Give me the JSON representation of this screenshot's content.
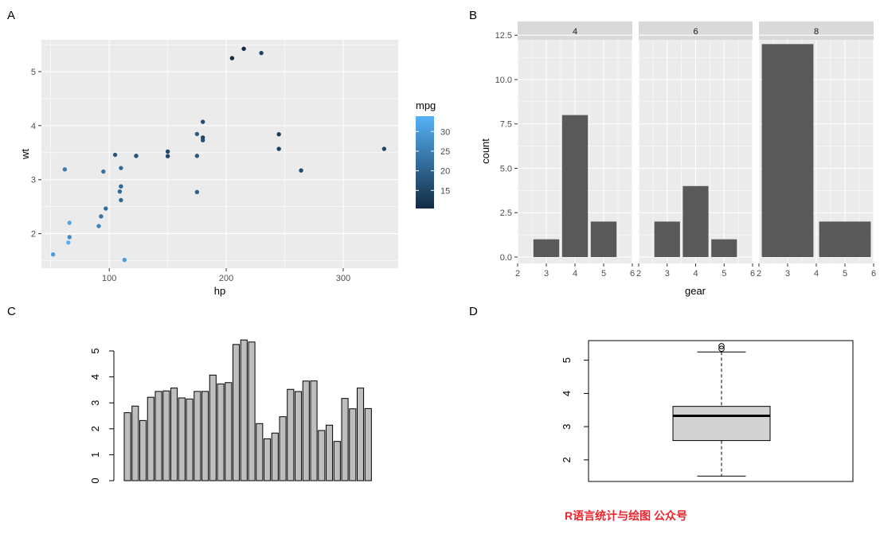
{
  "panels": {
    "a": "A",
    "b": "B",
    "c": "C",
    "d": "D"
  },
  "watermark": "R语言统计与绘图 公众号",
  "chart_data": [
    {
      "panel": "A",
      "type": "scatter",
      "xlabel": "hp",
      "ylabel": "wt",
      "xlim": [
        42,
        347
      ],
      "ylim": [
        1.36,
        5.59
      ],
      "xticks": [
        100,
        200,
        300
      ],
      "yticks": [
        2,
        3,
        4,
        5
      ],
      "grid": true,
      "color_by": "mpg",
      "legend": {
        "title": "mpg",
        "ticks": [
          15,
          20,
          25,
          30
        ],
        "range": [
          10.4,
          33.9
        ],
        "low_color": "#132B43",
        "high_color": "#56B1F7",
        "placement": "right"
      },
      "points": [
        {
          "x": 110,
          "y": 2.62,
          "mpg": 21.0
        },
        {
          "x": 110,
          "y": 2.875,
          "mpg": 21.0
        },
        {
          "x": 93,
          "y": 2.32,
          "mpg": 22.8
        },
        {
          "x": 110,
          "y": 3.215,
          "mpg": 21.4
        },
        {
          "x": 175,
          "y": 3.44,
          "mpg": 18.7
        },
        {
          "x": 105,
          "y": 3.46,
          "mpg": 18.1
        },
        {
          "x": 245,
          "y": 3.57,
          "mpg": 14.3
        },
        {
          "x": 62,
          "y": 3.19,
          "mpg": 24.4
        },
        {
          "x": 95,
          "y": 3.15,
          "mpg": 22.8
        },
        {
          "x": 123,
          "y": 3.44,
          "mpg": 19.2
        },
        {
          "x": 123,
          "y": 3.44,
          "mpg": 17.8
        },
        {
          "x": 180,
          "y": 4.07,
          "mpg": 16.4
        },
        {
          "x": 180,
          "y": 3.73,
          "mpg": 17.3
        },
        {
          "x": 180,
          "y": 3.78,
          "mpg": 15.2
        },
        {
          "x": 205,
          "y": 5.25,
          "mpg": 10.4
        },
        {
          "x": 215,
          "y": 5.424,
          "mpg": 10.4
        },
        {
          "x": 230,
          "y": 5.345,
          "mpg": 14.7
        },
        {
          "x": 66,
          "y": 2.2,
          "mpg": 32.4
        },
        {
          "x": 52,
          "y": 1.615,
          "mpg": 30.4
        },
        {
          "x": 65,
          "y": 1.835,
          "mpg": 33.9
        },
        {
          "x": 97,
          "y": 2.465,
          "mpg": 21.5
        },
        {
          "x": 150,
          "y": 3.52,
          "mpg": 15.5
        },
        {
          "x": 150,
          "y": 3.435,
          "mpg": 15.2
        },
        {
          "x": 245,
          "y": 3.84,
          "mpg": 13.3
        },
        {
          "x": 175,
          "y": 3.845,
          "mpg": 19.2
        },
        {
          "x": 66,
          "y": 1.935,
          "mpg": 27.3
        },
        {
          "x": 91,
          "y": 2.14,
          "mpg": 26.0
        },
        {
          "x": 113,
          "y": 1.513,
          "mpg": 30.4
        },
        {
          "x": 264,
          "y": 3.17,
          "mpg": 15.8
        },
        {
          "x": 175,
          "y": 2.77,
          "mpg": 19.7
        },
        {
          "x": 335,
          "y": 3.57,
          "mpg": 15.0
        },
        {
          "x": 109,
          "y": 2.78,
          "mpg": 21.4
        }
      ]
    },
    {
      "panel": "B",
      "type": "bar",
      "xlabel": "gear",
      "ylabel": "count",
      "xlim": [
        2,
        6
      ],
      "ylim": [
        0,
        12.6
      ],
      "xticks": [
        2,
        3,
        4,
        5,
        6
      ],
      "yticks": [
        "0.0",
        "2.5",
        "5.0",
        "7.5",
        "10.0",
        "12.5"
      ],
      "grid": true,
      "facets": [
        {
          "label": "4",
          "bars": [
            {
              "x": 3,
              "count": 1,
              "width": 0.9
            },
            {
              "x": 4,
              "count": 8,
              "width": 0.9
            },
            {
              "x": 5,
              "count": 2,
              "width": 0.9
            }
          ]
        },
        {
          "label": "6",
          "bars": [
            {
              "x": 3,
              "count": 2,
              "width": 0.9
            },
            {
              "x": 4,
              "count": 4,
              "width": 0.9
            },
            {
              "x": 5,
              "count": 1,
              "width": 0.9
            }
          ]
        },
        {
          "label": "8",
          "bars": [
            {
              "x": 3,
              "count": 12,
              "width": 1.8
            },
            {
              "x": 5,
              "count": 2,
              "width": 1.8
            }
          ]
        }
      ]
    },
    {
      "panel": "C",
      "type": "bar",
      "ylim": [
        0,
        5.424
      ],
      "yticks": [
        0,
        1,
        2,
        3,
        4,
        5
      ],
      "values": [
        2.62,
        2.875,
        2.32,
        3.215,
        3.44,
        3.46,
        3.57,
        3.19,
        3.15,
        3.44,
        3.44,
        4.07,
        3.73,
        3.78,
        5.25,
        5.424,
        5.345,
        2.2,
        1.615,
        1.835,
        2.465,
        3.52,
        3.435,
        3.84,
        3.845,
        1.935,
        2.14,
        1.513,
        3.17,
        2.77,
        3.57,
        2.78
      ],
      "bar_color": "#bebebe"
    },
    {
      "panel": "D",
      "type": "box",
      "ylim": [
        1.35,
        5.59
      ],
      "yticks": [
        2,
        3,
        4,
        5
      ],
      "whisker_low": 1.513,
      "q1": 2.58125,
      "median": 3.325,
      "q3": 3.61,
      "whisker_high": 5.25,
      "outliers": [
        5.424,
        5.345
      ],
      "box_color": "#d3d3d3"
    }
  ]
}
